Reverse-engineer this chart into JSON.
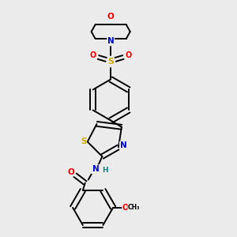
{
  "bg_color": "#ebebeb",
  "atom_colors": {
    "C": "#000000",
    "N": "#0000cc",
    "O": "#ff0000",
    "S_sulfonyl": "#ccaa00",
    "S_thiazole": "#ccaa00",
    "H": "#008888"
  },
  "line_color": "#000000",
  "line_width": 1.4,
  "fig_width": 3.0,
  "fig_height": 3.0,
  "dpi": 100,
  "xlim": [
    0.5,
    2.8
  ],
  "ylim": [
    0.1,
    3.1
  ]
}
